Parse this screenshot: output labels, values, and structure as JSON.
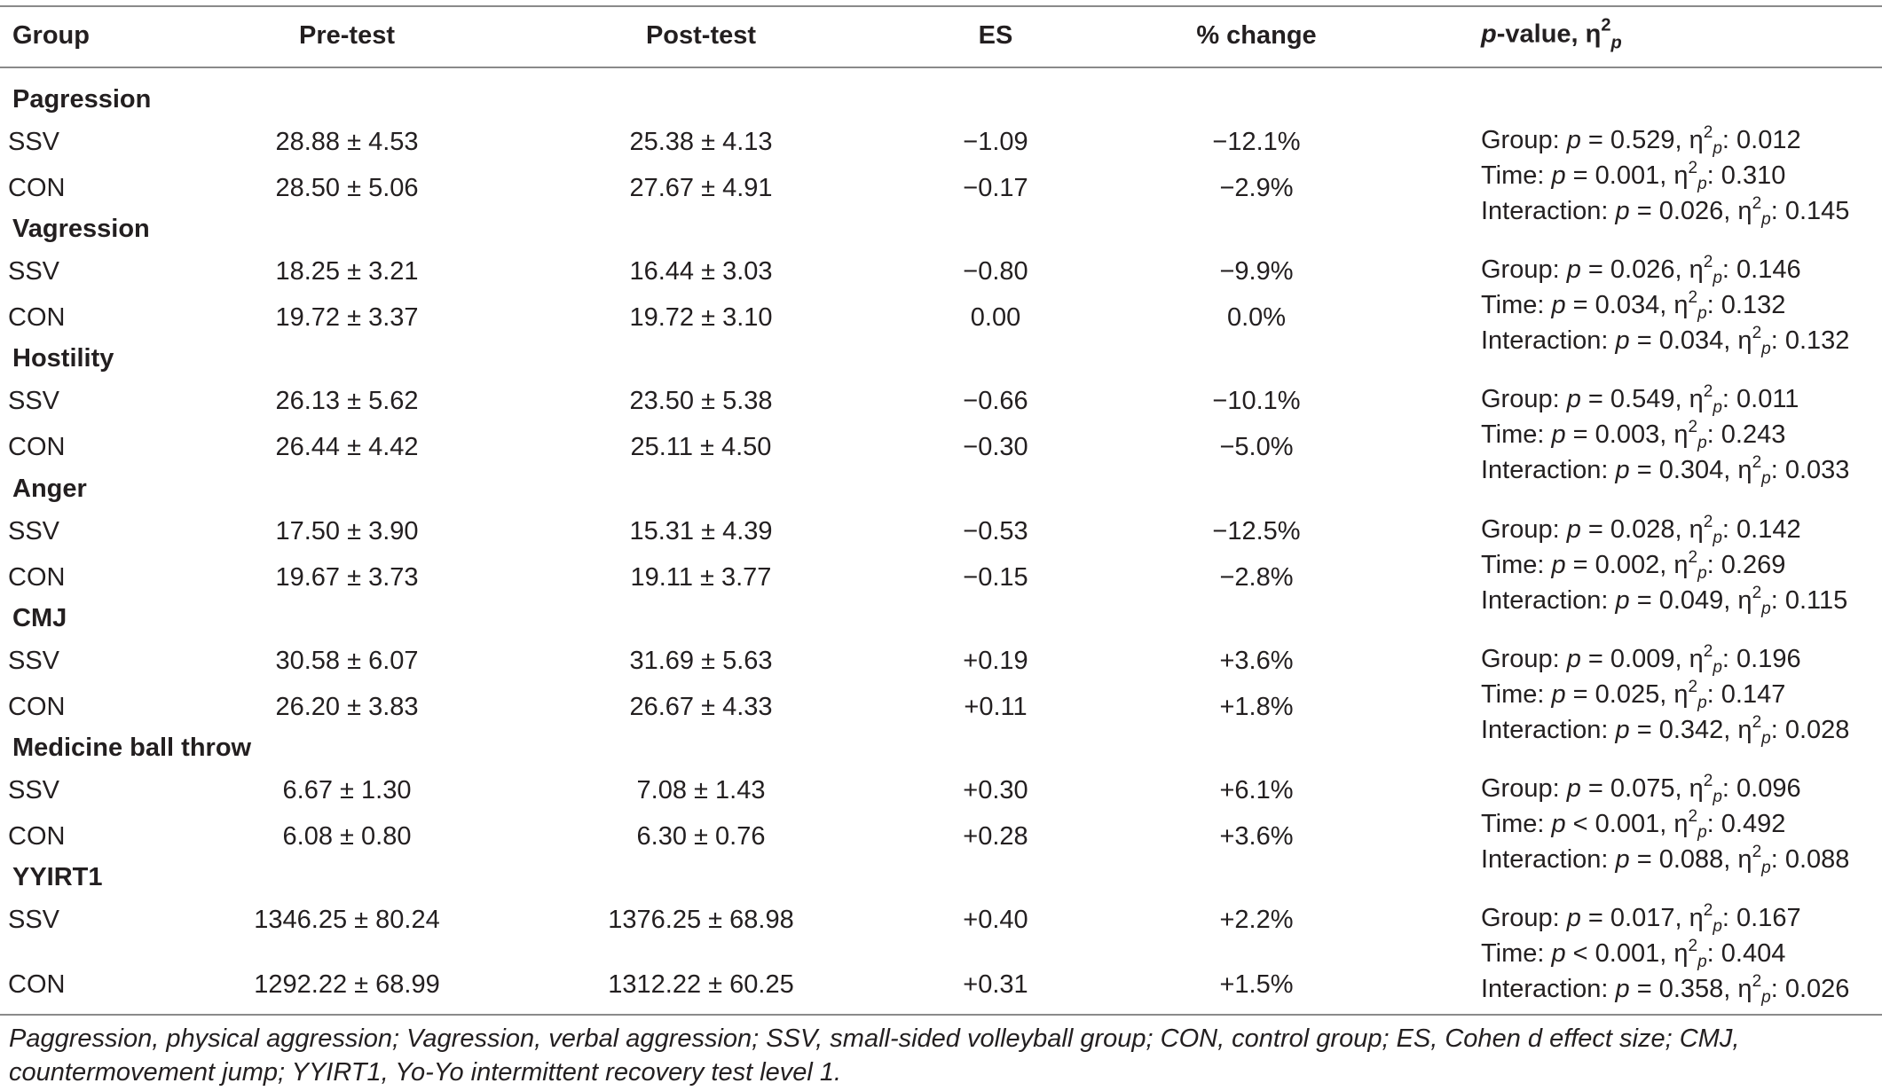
{
  "headers": {
    "group": "Group",
    "pre": "Pre-test",
    "post": "Post-test",
    "es": "ES",
    "change": "% change",
    "pvalue_p": "p",
    "pvalue_rest": "-value, η",
    "pvalue_sup": "2",
    "pvalue_sub": "p"
  },
  "stat_labels": {
    "group": "Group: ",
    "time": "Time: ",
    "interaction": "Interaction: ",
    "p": "p",
    "eta": "η",
    "sup": "2",
    "sub": "p"
  },
  "groups": [
    {
      "name": "Pagression",
      "rows": [
        {
          "group": "SSV",
          "pre": "28.88 ± 4.53",
          "post": "25.38 ± 4.13",
          "es": "−1.09",
          "change": "−12.1%"
        },
        {
          "group": "CON",
          "pre": "28.50 ± 5.06",
          "post": "27.67 ± 4.91",
          "es": "−0.17",
          "change": "−2.9%"
        }
      ],
      "stats": [
        {
          "label": "Group: ",
          "op": " = 0.529, ",
          "eta": ": 0.012"
        },
        {
          "label": "Time: ",
          "op": " = 0.001, ",
          "eta": ": 0.310"
        },
        {
          "label": "Interaction: ",
          "op": " = 0.026, ",
          "eta": ": 0.145"
        }
      ]
    },
    {
      "name": "Vagression",
      "rows": [
        {
          "group": "SSV",
          "pre": "18.25 ± 3.21",
          "post": "16.44 ± 3.03",
          "es": "−0.80",
          "change": "−9.9%"
        },
        {
          "group": "CON",
          "pre": "19.72 ± 3.37",
          "post": "19.72 ± 3.10",
          "es": "0.00",
          "change": "0.0%"
        }
      ],
      "stats": [
        {
          "label": "Group: ",
          "op": " = 0.026, ",
          "eta": ": 0.146"
        },
        {
          "label": "Time: ",
          "op": " = 0.034, ",
          "eta": ": 0.132"
        },
        {
          "label": "Interaction: ",
          "op": " = 0.034, ",
          "eta": ": 0.132"
        }
      ]
    },
    {
      "name": "Hostility",
      "rows": [
        {
          "group": "SSV",
          "pre": "26.13 ± 5.62",
          "post": "23.50 ± 5.38",
          "es": "−0.66",
          "change": "−10.1%"
        },
        {
          "group": "CON",
          "pre": "26.44 ± 4.42",
          "post": "25.11 ± 4.50",
          "es": "−0.30",
          "change": "−5.0%"
        }
      ],
      "stats": [
        {
          "label": "Group: ",
          "op": " = 0.549, ",
          "eta": ": 0.011"
        },
        {
          "label": "Time: ",
          "op": " = 0.003, ",
          "eta": ": 0.243"
        },
        {
          "label": "Interaction: ",
          "op": " = 0.304, ",
          "eta": ": 0.033"
        }
      ]
    },
    {
      "name": "Anger",
      "rows": [
        {
          "group": "SSV",
          "pre": "17.50 ± 3.90",
          "post": "15.31 ± 4.39",
          "es": "−0.53",
          "change": "−12.5%"
        },
        {
          "group": "CON",
          "pre": "19.67 ± 3.73",
          "post": "19.11 ± 3.77",
          "es": "−0.15",
          "change": "−2.8%"
        }
      ],
      "stats": [
        {
          "label": "Group: ",
          "op": " = 0.028, ",
          "eta": ": 0.142"
        },
        {
          "label": "Time: ",
          "op": " = 0.002, ",
          "eta": ": 0.269"
        },
        {
          "label": "Interaction: ",
          "op": " = 0.049, ",
          "eta": ": 0.115"
        }
      ]
    },
    {
      "name": "CMJ",
      "rows": [
        {
          "group": "SSV",
          "pre": "30.58 ± 6.07",
          "post": "31.69 ± 5.63",
          "es": "+0.19",
          "change": "+3.6%"
        },
        {
          "group": "CON",
          "pre": "26.20 ± 3.83",
          "post": "26.67 ± 4.33",
          "es": "+0.11",
          "change": "+1.8%"
        }
      ],
      "stats": [
        {
          "label": "Group: ",
          "op": " = 0.009, ",
          "eta": ": 0.196"
        },
        {
          "label": "Time: ",
          "op": " = 0.025, ",
          "eta": ": 0.147"
        },
        {
          "label": "Interaction: ",
          "op": " = 0.342, ",
          "eta": ": 0.028"
        }
      ]
    },
    {
      "name": "Medicine ball throw",
      "rows": [
        {
          "group": "SSV",
          "pre": "6.67 ± 1.30",
          "post": "7.08 ± 1.43",
          "es": "+0.30",
          "change": "+6.1%"
        },
        {
          "group": "CON",
          "pre": "6.08 ± 0.80",
          "post": "6.30 ± 0.76",
          "es": "+0.28",
          "change": "+3.6%"
        }
      ],
      "stats": [
        {
          "label": "Group: ",
          "op": " = 0.075, ",
          "eta": ": 0.096"
        },
        {
          "label": "Time: ",
          "op": " < 0.001, ",
          "eta": ": 0.492"
        },
        {
          "label": "Interaction: ",
          "op": " = 0.088, ",
          "eta": ": 0.088"
        }
      ]
    },
    {
      "name": "YYIRT1",
      "rows": [
        {
          "group": "SSV",
          "pre": "1346.25 ± 80.24",
          "post": "1376.25 ± 68.98",
          "es": "+0.40",
          "change": "+2.2%"
        },
        {
          "group": "CON",
          "pre": "1292.22 ± 68.99",
          "post": "1312.22 ± 60.25",
          "es": "+0.31",
          "change": "+1.5%"
        }
      ],
      "stats": [
        {
          "label": "Group: ",
          "op": " = 0.017, ",
          "eta": ": 0.167"
        },
        {
          "label": "Time: ",
          "op": " < 0.001, ",
          "eta": ": 0.404"
        },
        {
          "label": "Interaction: ",
          "op": " = 0.358, ",
          "eta": ": 0.026"
        }
      ]
    }
  ],
  "footnote": "Paggression, physical aggression; Vagression, verbal aggression; SSV, small-sided volleyball group; CON, control group; ES, Cohen d effect size; CMJ, countermovement jump; YYIRT1, Yo-Yo intermittent recovery test level 1."
}
